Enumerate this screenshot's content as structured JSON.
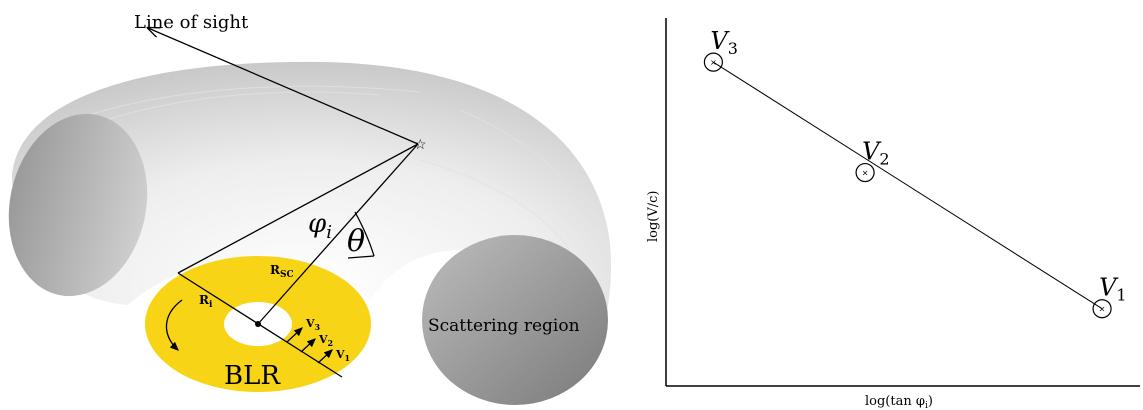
{
  "left_panel": {
    "line_of_sight_label": "Line of sight",
    "phi_symbol": "φ",
    "phi_subscript": "i",
    "theta_symbol": "θ",
    "r_sc_main": "R",
    "r_sc_sub": "SC",
    "r_i_main": "R",
    "r_i_sub": "i",
    "v1_main": "V",
    "v1_sub": "1",
    "v2_main": "V",
    "v2_sub": "2",
    "v3_main": "V",
    "v3_sub": "3",
    "blr_label": "BLR",
    "scattering_label": "Scattering region",
    "colors": {
      "torus_light": "#f2f2f2",
      "torus_dark": "#8c8c8c",
      "blr_disk": "#f7d416",
      "lines": "#000000"
    }
  },
  "chart_data": {
    "type": "scatter",
    "xlabel": "log(tan φ",
    "xlabel_sub": "i",
    "xlabel_close": ")",
    "ylabel": "log(V/c)",
    "points": [
      {
        "label": "V",
        "sub": "3",
        "x": 0.1,
        "y": 0.88
      },
      {
        "label": "V",
        "sub": "2",
        "x": 0.42,
        "y": 0.58
      },
      {
        "label": "V",
        "sub": "1",
        "x": 0.92,
        "y": 0.21
      }
    ],
    "xlim": [
      0,
      1
    ],
    "ylim": [
      0,
      1
    ],
    "grid": false,
    "legend": "none"
  }
}
